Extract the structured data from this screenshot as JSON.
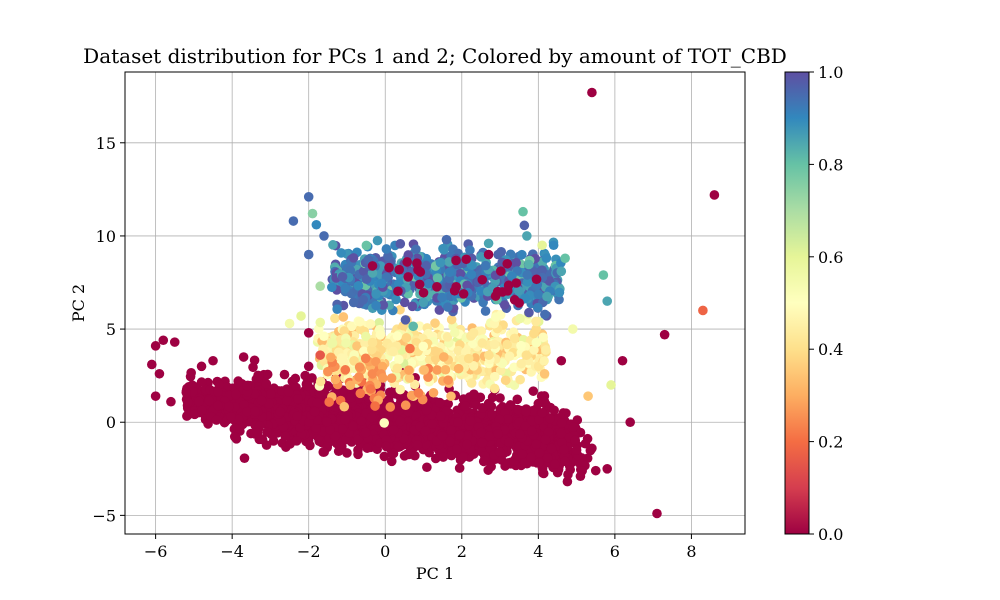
{
  "chart_data": {
    "type": "scatter",
    "title": "Dataset distribution for PCs 1 and 2; Colored by amount of TOT_CBD",
    "xlabel": "PC 1",
    "ylabel": "PC 2",
    "xlim": [
      -6.8,
      9.4
    ],
    "ylim": [
      -6.0,
      18.8
    ],
    "xticks": [
      -6,
      -4,
      -2,
      0,
      2,
      4,
      6,
      8
    ],
    "yticks": [
      -5,
      0,
      5,
      10,
      15
    ],
    "grid": true,
    "colorbar": {
      "label": "",
      "colormap": "Spectral",
      "range": [
        0.0,
        1.0
      ],
      "ticks": [
        0.0,
        0.2,
        0.4,
        0.6,
        0.8,
        1.0
      ],
      "tick_labels": [
        "0.0",
        "0.2",
        "0.4",
        "0.6",
        "0.8",
        "1.0"
      ]
    },
    "points": [
      {
        "x": 5.4,
        "y": 17.7,
        "c": 0.0
      },
      {
        "x": 8.6,
        "y": 12.2,
        "c": 0.0
      },
      {
        "x": 8.3,
        "y": 6.0,
        "c": 0.18
      },
      {
        "x": 7.3,
        "y": 4.7,
        "c": 0.0
      },
      {
        "x": 7.1,
        "y": -4.9,
        "c": 0.0
      },
      {
        "x": 6.4,
        "y": 0.0,
        "c": 0.0
      },
      {
        "x": 6.2,
        "y": 3.3,
        "c": 0.0
      },
      {
        "x": 5.8,
        "y": -2.5,
        "c": 0.0
      },
      {
        "x": 5.9,
        "y": 2.0,
        "c": 0.6
      },
      {
        "x": 5.7,
        "y": 7.9,
        "c": 0.8
      },
      {
        "x": 5.8,
        "y": 6.5,
        "c": 0.85
      },
      {
        "x": 5.3,
        "y": 1.4,
        "c": 0.35
      },
      {
        "x": 4.9,
        "y": 5.0,
        "c": 0.55
      },
      {
        "x": 4.7,
        "y": 8.8,
        "c": 0.8
      },
      {
        "x": 4.6,
        "y": 8.1,
        "c": 0.85
      },
      {
        "x": 4.4,
        "y": 9.5,
        "c": 0.9
      },
      {
        "x": 3.7,
        "y": 10.0,
        "c": 0.85
      },
      {
        "x": 3.6,
        "y": 11.3,
        "c": 0.8
      },
      {
        "x": 2.7,
        "y": 9.6,
        "c": 0.85
      },
      {
        "x": 1.6,
        "y": 9.8,
        "c": 0.95
      },
      {
        "x": 4.1,
        "y": 9.5,
        "c": 0.6
      },
      {
        "x": 2.7,
        "y": 9.0,
        "c": 0.0
      },
      {
        "x": -2.0,
        "y": 12.1,
        "c": 0.95
      },
      {
        "x": -2.4,
        "y": 10.8,
        "c": 0.95
      },
      {
        "x": -1.9,
        "y": 11.2,
        "c": 0.75
      },
      {
        "x": -1.8,
        "y": 10.6,
        "c": 0.9
      },
      {
        "x": -1.6,
        "y": 10.0,
        "c": 0.95
      },
      {
        "x": -2.0,
        "y": 9.0,
        "c": 0.95
      },
      {
        "x": -1.7,
        "y": 7.3,
        "c": 0.7
      },
      {
        "x": -2.2,
        "y": 5.7,
        "c": 0.6
      },
      {
        "x": -2.5,
        "y": 5.3,
        "c": 0.55
      },
      {
        "x": -2.0,
        "y": 4.8,
        "c": 0.0
      },
      {
        "x": -1.7,
        "y": 3.6,
        "c": 0.15
      },
      {
        "x": -2.0,
        "y": 3.0,
        "c": 0.0
      },
      {
        "x": -1.3,
        "y": 2.3,
        "c": 0.3
      },
      {
        "x": -6.0,
        "y": 4.1,
        "c": 0.0
      },
      {
        "x": -5.8,
        "y": 4.4,
        "c": 0.0
      },
      {
        "x": -5.5,
        "y": 4.3,
        "c": 0.0
      },
      {
        "x": -6.1,
        "y": 3.1,
        "c": 0.0
      },
      {
        "x": -5.9,
        "y": 2.6,
        "c": 0.0
      },
      {
        "x": -6.0,
        "y": 1.4,
        "c": 0.0
      },
      {
        "x": -5.6,
        "y": 1.1,
        "c": 0.0
      },
      {
        "x": -5.2,
        "y": 1.6,
        "c": 0.0
      },
      {
        "x": -4.8,
        "y": 3.0,
        "c": 0.0
      },
      {
        "x": -4.5,
        "y": 3.3,
        "c": 0.0
      },
      {
        "x": -3.7,
        "y": 3.5,
        "c": 0.0
      },
      {
        "x": 4.7,
        "y": -2.1,
        "c": 0.0
      },
      {
        "x": 5.1,
        "y": -2.9,
        "c": 0.0
      },
      {
        "x": 5.5,
        "y": -2.6,
        "c": 0.0
      },
      {
        "x": 5.0,
        "y": -1.5,
        "c": 0.0
      },
      {
        "x": 5.4,
        "y": -1.4,
        "c": 0.0
      },
      {
        "x": 4.6,
        "y": -0.6,
        "c": 0.0
      },
      {
        "x": 4.3,
        "y": 0.2,
        "c": 0.0
      },
      {
        "x": 4.1,
        "y": 0.5,
        "c": 0.0
      },
      {
        "x": 4.6,
        "y": 3.3,
        "c": 0.0
      },
      {
        "x": 3.0,
        "y": 1.3,
        "c": 0.0
      },
      {
        "x": 2.7,
        "y": 1.0,
        "c": 0.0
      },
      {
        "x": 4.0,
        "y": 1.0,
        "c": 0.0
      },
      {
        "x": 3.5,
        "y": 6.4,
        "c": 0.0
      },
      {
        "x": 0.6,
        "y": 7.8,
        "c": 0.0
      },
      {
        "x": 0.9,
        "y": 7.4,
        "c": 0.0
      },
      {
        "x": 0.1,
        "y": 8.3,
        "c": 0.0
      }
    ]
  }
}
